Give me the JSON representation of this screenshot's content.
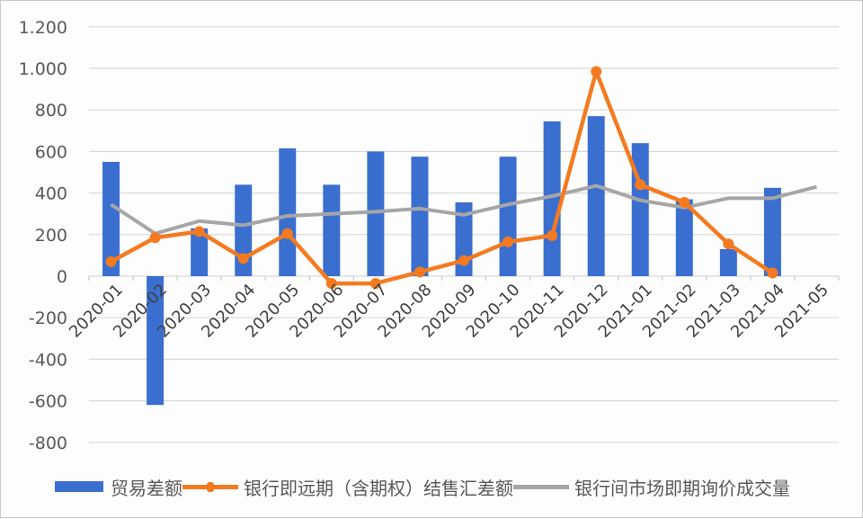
{
  "chart_data": {
    "type": "bar+line",
    "title": "",
    "xlabel": "",
    "ylabel": "",
    "ylim": [
      -800,
      1200
    ],
    "yticks": [
      1200,
      1000,
      800,
      600,
      400,
      200,
      0,
      -200,
      -400,
      -600,
      -800
    ],
    "ytick_labels": [
      "1.200",
      "1.000",
      "800",
      "600",
      "400",
      "200",
      "0",
      "-200",
      "-400",
      "-600",
      "-800"
    ],
    "grid": true,
    "legend_position": "bottom",
    "categories": [
      "2020-01",
      "2020-02",
      "2020-03",
      "2020-04",
      "2020-05",
      "2020-06",
      "2020-07",
      "2020-08",
      "2020-09",
      "2020-10",
      "2020-11",
      "2020-12",
      "2021-01",
      "2021-02",
      "2021-03",
      "2021-04",
      "2021-05"
    ],
    "series": [
      {
        "name": "贸易差额",
        "type": "bar",
        "color": "#3a6fd0",
        "values": [
          550,
          -620,
          230,
          440,
          615,
          440,
          600,
          575,
          355,
          575,
          745,
          770,
          640,
          370,
          130,
          425,
          null
        ]
      },
      {
        "name": "银行即远期（含期权）结售汇差额",
        "type": "line",
        "color": "#f47a20",
        "markers": true,
        "values": [
          70,
          185,
          215,
          85,
          205,
          -35,
          -35,
          20,
          75,
          165,
          195,
          985,
          440,
          355,
          155,
          15,
          null
        ]
      },
      {
        "name": "银行间市场即期询价成交量",
        "type": "line",
        "color": "#a6a6a6",
        "markers": false,
        "values": [
          345,
          205,
          265,
          245,
          290,
          300,
          310,
          325,
          295,
          345,
          385,
          435,
          365,
          330,
          375,
          375,
          430
        ]
      }
    ]
  },
  "legend": {
    "items": [
      {
        "label": "贸易差额",
        "kind": "bar",
        "color": "#3a6fd0"
      },
      {
        "label": "银行即远期（含期权）结售汇差额",
        "kind": "line-marker",
        "color": "#f47a20"
      },
      {
        "label": "银行间市场即期询价成交量",
        "kind": "line",
        "color": "#a6a6a6"
      }
    ]
  }
}
